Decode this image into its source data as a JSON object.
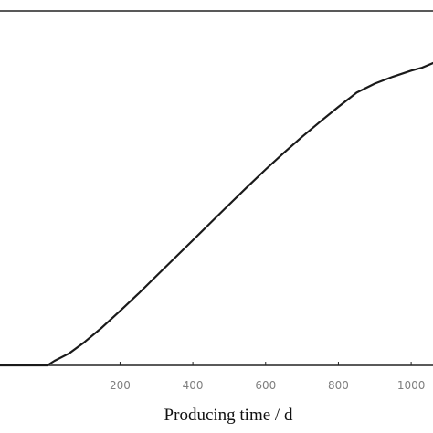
{
  "chart_data": {
    "type": "line",
    "title": "",
    "xlabel": "Producing time / d",
    "ylabel": "",
    "xlim": [
      -130,
      1060
    ],
    "ylim": [
      0,
      1
    ],
    "grid": false,
    "legend": "none",
    "x_ticks": [
      {
        "value": 200,
        "label": "200"
      },
      {
        "value": 400,
        "label": "400"
      },
      {
        "value": 600,
        "label": "600"
      },
      {
        "value": 800,
        "label": "800"
      },
      {
        "value": 1000,
        "label": "1000"
      }
    ],
    "series": [
      {
        "name": "",
        "color": "#1a1a1a",
        "x": [
          -130,
          0,
          20,
          60,
          100,
          150,
          200,
          250,
          300,
          350,
          400,
          450,
          500,
          550,
          600,
          650,
          700,
          750,
          800,
          850,
          900,
          950,
          1000,
          1030,
          1060
        ],
        "y": [
          0.0,
          0.0,
          0.015,
          0.04,
          0.075,
          0.125,
          0.18,
          0.237,
          0.296,
          0.355,
          0.414,
          0.473,
          0.532,
          0.591,
          0.648,
          0.703,
          0.756,
          0.806,
          0.855,
          0.902,
          0.932,
          0.955,
          0.975,
          0.985,
          1.0
        ]
      }
    ]
  }
}
